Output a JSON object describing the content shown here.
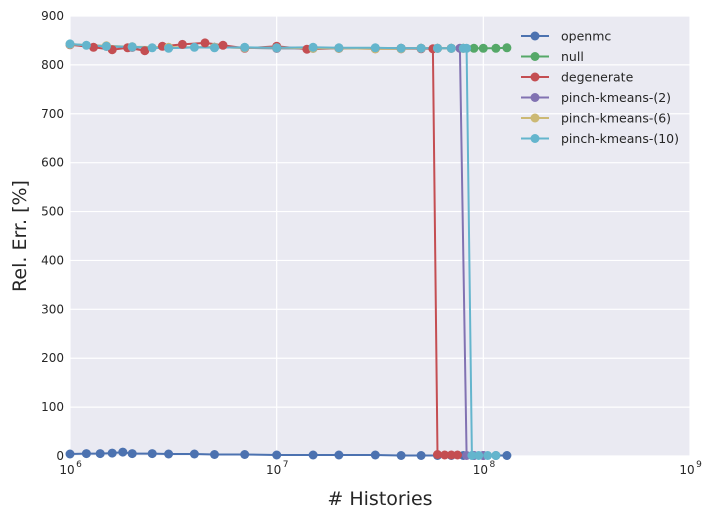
{
  "chart_data": {
    "type": "line",
    "title": "",
    "xlabel": "# Histories",
    "ylabel": "Rel. Err. [%]",
    "xscale": "log",
    "xlim": [
      1000000,
      1000000000
    ],
    "ylim": [
      0,
      900
    ],
    "x_ticks": [
      {
        "value": 1000000,
        "base": "10",
        "exp": "6"
      },
      {
        "value": 10000000,
        "base": "10",
        "exp": "7"
      },
      {
        "value": 100000000,
        "base": "10",
        "exp": "8"
      },
      {
        "value": 1000000000,
        "base": "10",
        "exp": "9"
      }
    ],
    "y_ticks": [
      "0",
      "100",
      "200",
      "300",
      "400",
      "500",
      "600",
      "700",
      "800",
      "900"
    ],
    "grid": true,
    "legend_position": "top-right",
    "series": [
      {
        "name": "openmc",
        "color": "#4c72b0",
        "x": [
          1000000,
          1200000,
          1400000,
          1600000,
          1800000,
          2000000,
          2500000,
          3000000,
          4000000,
          5000000,
          7000000,
          10000000,
          15000000,
          20000000,
          30000000,
          40000000,
          50000000,
          60000000,
          70000000,
          80000000,
          90000000,
          100000000,
          115000000,
          130000000
        ],
        "y": [
          4,
          5,
          5,
          6,
          8,
          5,
          5,
          4,
          4,
          3,
          3,
          2,
          2,
          2,
          2,
          1,
          1,
          1,
          1,
          1,
          1,
          1,
          1,
          1
        ]
      },
      {
        "name": "null",
        "color": "#55a868",
        "x": [
          1000000,
          1500000,
          2000000,
          3000000,
          5000000,
          7000000,
          10000000,
          15000000,
          20000000,
          30000000,
          40000000,
          50000000,
          60000000,
          70000000,
          80000000,
          90000000,
          100000000,
          115000000,
          130000000
        ],
        "y": [
          842,
          838,
          836,
          835,
          836,
          835,
          834,
          834,
          834,
          834,
          834,
          834,
          834,
          834,
          834,
          834,
          834,
          834,
          835
        ]
      },
      {
        "name": "degenerate",
        "color": "#c44e52",
        "x": [
          1000000,
          1300000,
          1600000,
          1900000,
          2300000,
          2800000,
          3500000,
          4500000,
          5500000,
          7000000,
          10000000,
          14000000,
          20000000,
          30000000,
          40000000,
          50000000,
          57000000,
          60000000,
          65000000,
          70000000,
          75000000
        ],
        "y": [
          841,
          836,
          831,
          835,
          829,
          838,
          842,
          845,
          840,
          834,
          838,
          832,
          834,
          833,
          833,
          833,
          833,
          3,
          2,
          2,
          2
        ]
      },
      {
        "name": "pinch-kmeans-(2)",
        "color": "#8172b2",
        "x": [
          1000000,
          1500000,
          2000000,
          3000000,
          5000000,
          7000000,
          10000000,
          15000000,
          20000000,
          30000000,
          40000000,
          50000000,
          60000000,
          70000000,
          77000000,
          83000000,
          90000000,
          100000000
        ],
        "y": [
          842,
          838,
          836,
          835,
          836,
          835,
          834,
          834,
          834,
          834,
          834,
          834,
          834,
          834,
          834,
          1,
          1,
          1
        ]
      },
      {
        "name": "pinch-kmeans-(6)",
        "color": "#ccb974",
        "x": [
          1000000,
          1500000,
          2000000,
          3000000,
          5000000,
          7000000,
          10000000,
          15000000,
          20000000,
          30000000,
          40000000,
          50000000,
          60000000,
          70000000,
          80000000
        ],
        "y": [
          842,
          839,
          837,
          836,
          836,
          835,
          835,
          834,
          834,
          833,
          833,
          834,
          834,
          834,
          834
        ]
      },
      {
        "name": "pinch-kmeans-(10)",
        "color": "#64b5cd",
        "x": [
          1000000,
          1200000,
          1500000,
          2000000,
          2500000,
          3000000,
          4000000,
          5000000,
          7000000,
          10000000,
          15000000,
          20000000,
          30000000,
          40000000,
          50000000,
          60000000,
          70000000,
          80000000,
          83000000,
          88000000,
          95000000,
          105000000,
          115000000
        ],
        "y": [
          843,
          840,
          838,
          837,
          835,
          834,
          836,
          835,
          836,
          835,
          836,
          835,
          835,
          834,
          834,
          834,
          834,
          834,
          834,
          1,
          1,
          1,
          1
        ]
      }
    ]
  }
}
